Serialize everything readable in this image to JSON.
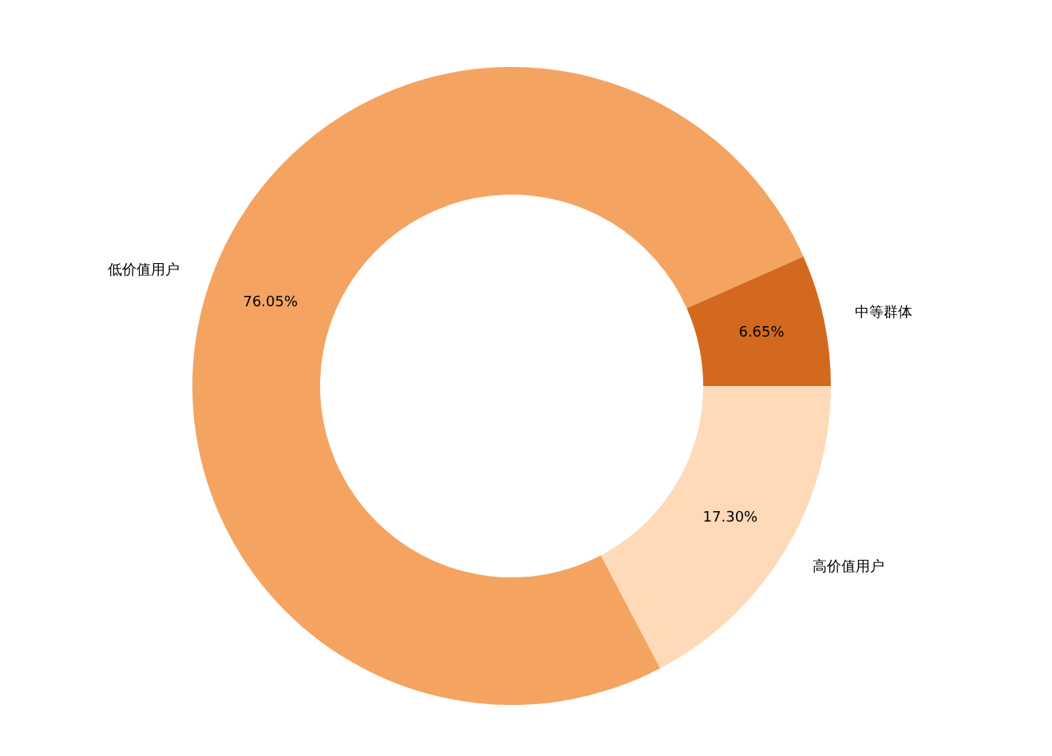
{
  "chart_data": {
    "type": "donut",
    "categories": [
      "高价值用户",
      "低价值用户",
      "中等群体"
    ],
    "values": [
      17.3,
      76.05,
      6.65
    ],
    "value_labels": [
      "17.30%",
      "76.05%",
      "6.65%"
    ],
    "colors": [
      "#ffdab9",
      "#f4a460",
      "#d2691e"
    ],
    "legend": false
  }
}
